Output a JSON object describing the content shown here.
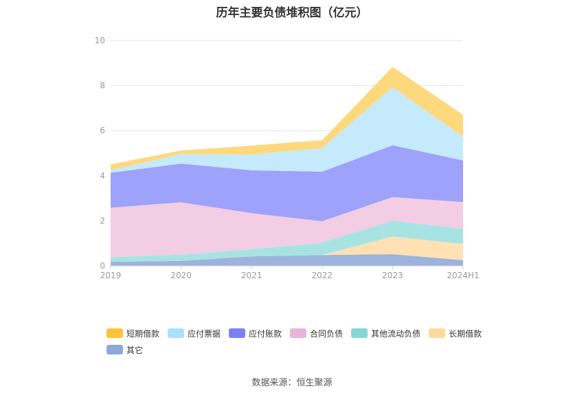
{
  "source_note": "数据来源：恒生聚源",
  "chart_data": {
    "type": "area",
    "stacked": true,
    "title": "历年主要负债堆积图（亿元）",
    "categories": [
      "2019",
      "2020",
      "2021",
      "2022",
      "2023",
      "2024H1"
    ],
    "y_ticks": [
      "0",
      "2",
      "4",
      "6",
      "8",
      "10"
    ],
    "ylim": [
      0,
      10
    ],
    "grid": true,
    "legend_position": "bottom",
    "series": [
      {
        "name": "其它",
        "color": "#9db3dc",
        "values": [
          0.18,
          0.22,
          0.42,
          0.48,
          0.52,
          0.25
        ]
      },
      {
        "name": "长期借款",
        "color": "#ffe1b3",
        "values": [
          0.0,
          0.0,
          0.0,
          0.0,
          0.78,
          0.72
        ]
      },
      {
        "name": "其他流动负债",
        "color": "#a8e3e3",
        "values": [
          0.2,
          0.28,
          0.32,
          0.55,
          0.7,
          0.68
        ]
      },
      {
        "name": "合同负债",
        "color": "#f2cde3",
        "values": [
          2.2,
          2.32,
          1.6,
          0.95,
          1.05,
          1.18
        ]
      },
      {
        "name": "应付账款",
        "color": "#9ea2fa",
        "values": [
          1.55,
          1.72,
          1.9,
          2.2,
          2.3,
          1.85
        ]
      },
      {
        "name": "应付票据",
        "color": "#c5eafb",
        "values": [
          0.12,
          0.42,
          0.7,
          1.05,
          2.58,
          1.05
        ]
      },
      {
        "name": "短期借款",
        "color": "#fed87d",
        "values": [
          0.25,
          0.16,
          0.4,
          0.35,
          0.9,
          0.97
        ]
      }
    ],
    "legend": [
      {
        "name": "短期借款",
        "color": "#fdc23c"
      },
      {
        "name": "应付票据",
        "color": "#ade0fb"
      },
      {
        "name": "应付账款",
        "color": "#7b81f5"
      },
      {
        "name": "合同负债",
        "color": "#eab4da"
      },
      {
        "name": "其他流动负债",
        "color": "#86d6d6"
      },
      {
        "name": "长期借款",
        "color": "#fdd9a0"
      },
      {
        "name": "其它",
        "color": "#8ba9db"
      }
    ]
  }
}
